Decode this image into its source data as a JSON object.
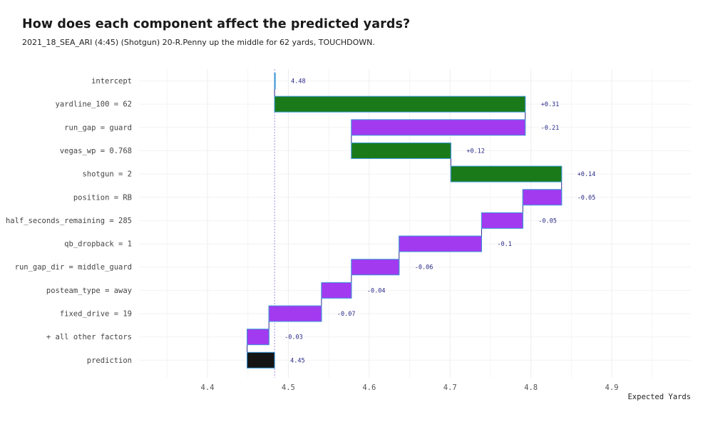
{
  "chart_data": {
    "type": "bar",
    "subtype": "waterfall",
    "title": "How does each component affect the predicted yards?",
    "subtitle": "2021_18_SEA_ARI (4:45) (Shotgun) 20-R.Penny up the middle for 62 yards, TOUCHDOWN.",
    "xlabel": "Expected Yards",
    "ylabel": "",
    "xlim": [
      4.32,
      5.0
    ],
    "xticks": [
      4.4,
      4.5,
      4.6,
      4.7,
      4.8,
      4.9
    ],
    "xtick_labels": [
      "4.4",
      "4.5",
      "4.6",
      "4.7",
      "4.8",
      "4.9"
    ],
    "grid": true,
    "reference_line": 4.483,
    "colors": {
      "positive": "#1a7a1a",
      "negative": "#a23af0",
      "total": "#151515",
      "outline": "#3a9ad9",
      "label": "#2b2b8a"
    },
    "rows": [
      {
        "label": "intercept",
        "start": 4.483,
        "end": 4.483,
        "value_label": "4.48",
        "kind": "total"
      },
      {
        "label": "yardline_100 = 62",
        "start": 4.483,
        "end": 4.793,
        "value_label": "+0.31",
        "kind": "positive"
      },
      {
        "label": "run_gap = guard",
        "start": 4.793,
        "end": 4.578,
        "value_label": "-0.21",
        "kind": "negative"
      },
      {
        "label": "vegas_wp = 0.768",
        "start": 4.578,
        "end": 4.701,
        "value_label": "+0.12",
        "kind": "positive"
      },
      {
        "label": "shotgun = 2",
        "start": 4.701,
        "end": 4.838,
        "value_label": "+0.14",
        "kind": "positive"
      },
      {
        "label": "position = RB",
        "start": 4.838,
        "end": 4.79,
        "value_label": "-0.05",
        "kind": "negative"
      },
      {
        "label": "half_seconds_remaining = 285",
        "start": 4.79,
        "end": 4.739,
        "value_label": "-0.05",
        "kind": "negative"
      },
      {
        "label": "qb_dropback = 1",
        "start": 4.739,
        "end": 4.637,
        "value_label": "-0.1",
        "kind": "negative"
      },
      {
        "label": "run_gap_dir = middle_guard",
        "start": 4.637,
        "end": 4.578,
        "value_label": "-0.06",
        "kind": "negative"
      },
      {
        "label": "posteam_type = away",
        "start": 4.578,
        "end": 4.541,
        "value_label": "-0.04",
        "kind": "negative"
      },
      {
        "label": "fixed_drive = 19",
        "start": 4.541,
        "end": 4.476,
        "value_label": "-0.07",
        "kind": "negative"
      },
      {
        "label": "+ all other factors",
        "start": 4.476,
        "end": 4.449,
        "value_label": "-0.03",
        "kind": "negative"
      },
      {
        "label": "prediction",
        "start": 4.449,
        "end": 4.483,
        "value_label": "4.45",
        "kind": "total"
      }
    ]
  }
}
